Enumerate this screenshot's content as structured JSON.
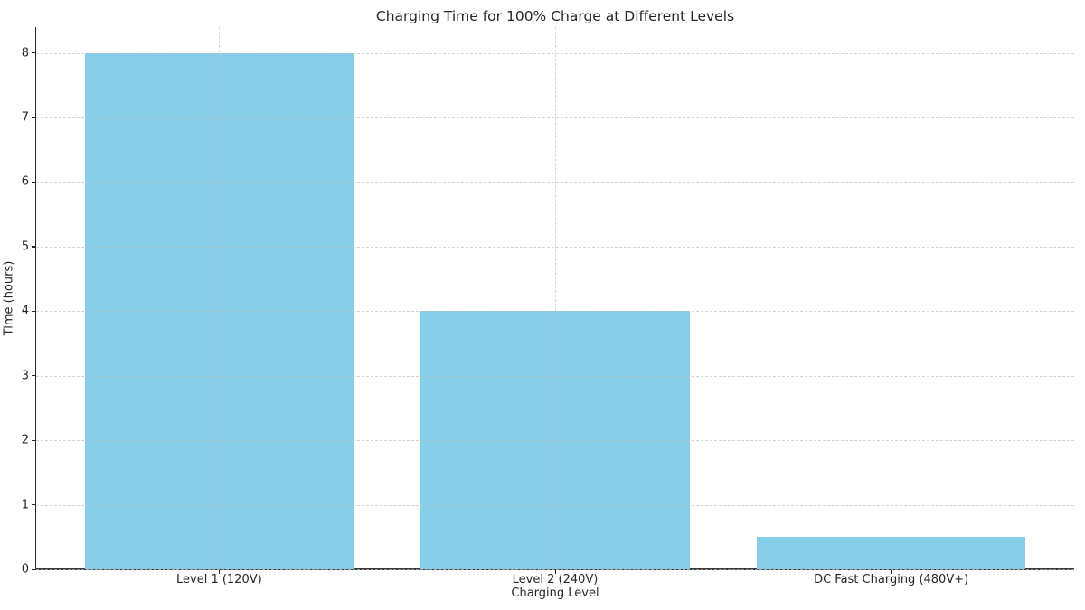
{
  "chart_data": {
    "type": "bar",
    "title": "Charging Time for 100% Charge at Different Levels",
    "xlabel": "Charging Level",
    "ylabel": "Time (hours)",
    "categories": [
      "Level 1 (120V)",
      "Level 2 (240V)",
      "DC Fast Charging (480V+)"
    ],
    "values": [
      8,
      4,
      0.5
    ],
    "yticks": [
      0,
      1,
      2,
      3,
      4,
      5,
      6,
      7,
      8
    ],
    "ylim": [
      0,
      8.4
    ],
    "bar_width_fraction": 0.8,
    "x_margin_units": 0.5445,
    "legend": "none",
    "grid": "dashed",
    "bar_color": "#87CEEB",
    "grid_color": "#bebebe",
    "axis_color": "#262626",
    "text_color": "#262626",
    "background_color": "#ffffff"
  }
}
